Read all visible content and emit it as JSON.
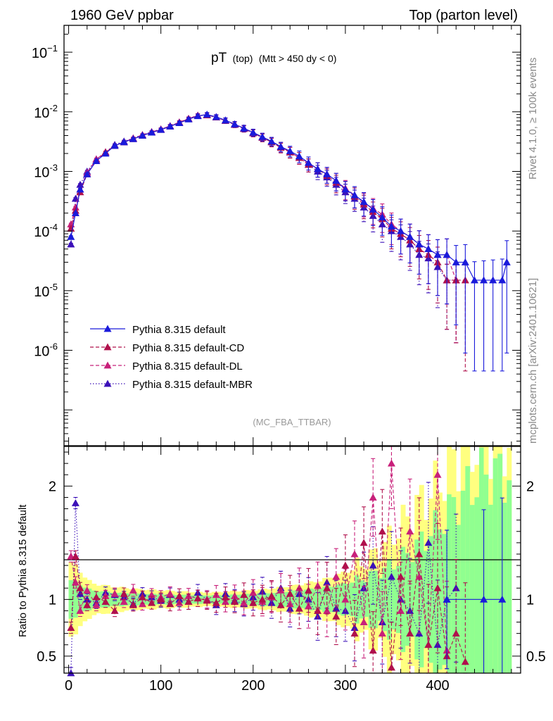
{
  "header": {
    "left": "1960 GeV ppbar",
    "right": "Top (parton level)"
  },
  "side_labels": {
    "rivet": "Rivet 4.1.0, ≥ 100k events",
    "mcplots": "mcplots.cern.ch [arXiv:2401.10621]"
  },
  "colors": {
    "default": "#1a1adb",
    "cd": "#b0104c",
    "dl": "#c8207a",
    "mbr": "#3b10b8",
    "band_yellow": "#ffff80",
    "band_green": "#90ff90"
  },
  "chart_data": [
    {
      "type": "line",
      "title": "pT (top) (Mtt > 450 dy < 0)",
      "title_parts": {
        "main": "pT",
        "sub1": "(top)",
        "sub2": "(Mtt > 450 dy < 0)"
      },
      "reference": "(MC_FBA_TTBAR)",
      "xlabel": "",
      "ylabel": "",
      "xlim": [
        -5,
        490
      ],
      "ylim_log10": [
        -7.6,
        -0.55
      ],
      "yscale": "log",
      "xticks": [
        0,
        100,
        200,
        300,
        400
      ],
      "ytick_labels": [
        {
          "exp": -1,
          "text": "10",
          "sup": "−1"
        },
        {
          "exp": -2,
          "text": "10",
          "sup": "-2"
        },
        {
          "exp": -3,
          "text": "10",
          "sup": "-3"
        },
        {
          "exp": -4,
          "text": "10",
          "sup": "-4"
        },
        {
          "exp": -5,
          "text": "10",
          "sup": "-5"
        },
        {
          "exp": -6,
          "text": "10",
          "sup": "-6"
        }
      ],
      "legend": [
        {
          "key": "default",
          "label": "Pythia 8.315 default",
          "style": "solid"
        },
        {
          "key": "cd",
          "label": "Pythia 8.315 default-CD",
          "style": "dashed"
        },
        {
          "key": "dl",
          "label": "Pythia 8.315 default-DL",
          "style": "dashed"
        },
        {
          "key": "mbr",
          "label": "Pythia 8.315 default-MBR",
          "style": "dotted"
        }
      ],
      "series": [
        {
          "key": "default",
          "name": "Pythia 8.315 default",
          "x": [
            2.5,
            7.5,
            12.5,
            20,
            30,
            40,
            50,
            60,
            70,
            80,
            90,
            100,
            110,
            120,
            130,
            140,
            150,
            160,
            170,
            180,
            190,
            200,
            210,
            220,
            230,
            240,
            250,
            260,
            270,
            280,
            290,
            300,
            310,
            320,
            330,
            340,
            350,
            360,
            370,
            380,
            390,
            400,
            410,
            420,
            430,
            440,
            450,
            460,
            470,
            475
          ],
          "values": [
            8e-05,
            0.0002,
            0.0005,
            0.0009,
            0.0015,
            0.002,
            0.0027,
            0.0031,
            0.0035,
            0.004,
            0.0045,
            0.005,
            0.0057,
            0.0065,
            0.0075,
            0.0085,
            0.009,
            0.0082,
            0.0072,
            0.0062,
            0.0053,
            0.0045,
            0.0038,
            0.0032,
            0.0026,
            0.0022,
            0.0018,
            0.0014,
            0.0011,
            0.0009,
            0.0007,
            0.0005,
            0.0004,
            0.00031,
            0.00023,
            0.00017,
            0.00012,
            0.0001,
            8e-05,
            6e-05,
            5e-05,
            4e-05,
            4e-05,
            3e-05,
            3e-05,
            1.5e-05,
            1.5e-05,
            1.5e-05,
            1.5e-05,
            3e-05
          ]
        },
        {
          "key": "cd",
          "name": "Pythia 8.315 default-CD",
          "x": [
            2.5,
            7.5,
            12.5,
            20,
            30,
            40,
            50,
            60,
            70,
            80,
            90,
            100,
            110,
            120,
            130,
            140,
            150,
            160,
            170,
            180,
            190,
            200,
            210,
            220,
            230,
            240,
            250,
            260,
            270,
            280,
            290,
            300,
            310,
            320,
            330,
            340,
            350,
            360,
            370,
            380,
            390,
            400,
            410,
            420,
            430
          ],
          "values": [
            0.00011,
            0.00022,
            0.00045,
            0.0009,
            0.0015,
            0.0021,
            0.0027,
            0.0031,
            0.0035,
            0.004,
            0.0045,
            0.005,
            0.0057,
            0.0066,
            0.0076,
            0.0086,
            0.0088,
            0.0081,
            0.0071,
            0.0061,
            0.0052,
            0.0044,
            0.0037,
            0.0031,
            0.0025,
            0.0021,
            0.0017,
            0.0013,
            0.0011,
            0.00085,
            0.00065,
            0.0005,
            0.00038,
            0.00028,
            0.00021,
            0.00016,
            0.00011,
            9e-05,
            7e-05,
            5e-05,
            4e-05,
            3e-05,
            1.5e-05,
            1.5e-05,
            1.5e-05
          ]
        },
        {
          "key": "dl",
          "name": "Pythia 8.315 default-DL",
          "x": [
            2.5,
            7.5,
            12.5,
            20,
            30,
            40,
            50,
            60,
            70,
            80,
            90,
            100,
            110,
            120,
            130,
            140,
            150,
            160,
            170,
            180,
            190,
            200,
            210,
            220,
            230,
            240,
            250,
            260,
            270,
            280,
            290,
            300,
            310,
            320,
            330,
            340,
            350,
            360,
            370,
            380,
            390,
            400,
            410,
            420
          ],
          "values": [
            0.00013,
            0.00025,
            0.0005,
            0.00095,
            0.0016,
            0.0021,
            0.0027,
            0.0031,
            0.0036,
            0.0041,
            0.0046,
            0.0051,
            0.0058,
            0.0067,
            0.0077,
            0.0087,
            0.0089,
            0.0082,
            0.0072,
            0.0062,
            0.0053,
            0.0045,
            0.0038,
            0.0032,
            0.0026,
            0.0021,
            0.0017,
            0.0014,
            0.0011,
            0.0009,
            0.0007,
            0.00052,
            0.0004,
            0.0003,
            0.00024,
            0.00019,
            0.00013,
            0.0001,
            8e-05,
            6e-05,
            5e-05,
            4e-05,
            4e-05,
            1.5e-05
          ]
        },
        {
          "key": "mbr",
          "name": "Pythia 8.315 default-MBR",
          "x": [
            2.5,
            7.5,
            12.5,
            20,
            30,
            40,
            50,
            60,
            70,
            80,
            90,
            100,
            110,
            120,
            130,
            140,
            150,
            160,
            170,
            180,
            190,
            200,
            210,
            220,
            230,
            240,
            250,
            260,
            270,
            280,
            290,
            300,
            310,
            320,
            330,
            340,
            350,
            360,
            370,
            380,
            390,
            400,
            410,
            420
          ],
          "values": [
            6e-05,
            0.00035,
            0.0006,
            0.001,
            0.0016,
            0.0021,
            0.0028,
            0.0032,
            0.0036,
            0.0041,
            0.0046,
            0.0051,
            0.0058,
            0.0066,
            0.0076,
            0.0086,
            0.0088,
            0.0081,
            0.0071,
            0.0061,
            0.0052,
            0.0044,
            0.0037,
            0.0031,
            0.0026,
            0.0021,
            0.0017,
            0.0013,
            0.001,
            0.0008,
            0.0006,
            0.00045,
            0.00035,
            0.00025,
            0.00018,
            0.00013,
            0.0001,
            8e-05,
            6e-05,
            4e-05,
            3.5e-05,
            2.5e-05,
            1.5e-05,
            1.5e-05
          ]
        }
      ]
    },
    {
      "type": "line",
      "title": "",
      "ylabel": "Ratio to Pythia 8.315 default",
      "xlim": [
        -5,
        490
      ],
      "ylim": [
        0.35,
        2.35
      ],
      "xticks": [
        0,
        100,
        200,
        300,
        400
      ],
      "yticks": [
        0.5,
        1,
        2
      ],
      "ytick_labels": [
        "0.5",
        "1",
        "2"
      ],
      "bands": {
        "x": [
          0,
          25,
          50,
          75,
          100,
          125,
          150,
          175,
          200,
          225,
          250,
          275,
          300,
          325,
          350,
          375,
          400,
          425,
          450,
          475
        ],
        "yellow_halfwidth": [
          0.35,
          0.14,
          0.11,
          0.09,
          0.08,
          0.07,
          0.06,
          0.07,
          0.08,
          0.1,
          0.13,
          0.17,
          0.24,
          0.35,
          0.55,
          0.8,
          1.0,
          1.3,
          1.4,
          1.4
        ],
        "green_halfwidth": [
          0.18,
          0.08,
          0.06,
          0.05,
          0.045,
          0.04,
          0.035,
          0.04,
          0.05,
          0.06,
          0.08,
          0.1,
          0.14,
          0.2,
          0.3,
          0.45,
          0.65,
          0.9,
          1.1,
          1.1
        ]
      },
      "series": [
        {
          "key": "cd",
          "name": "default-CD",
          "x": [
            2.5,
            7.5,
            12.5,
            20,
            30,
            40,
            50,
            60,
            70,
            80,
            90,
            100,
            110,
            120,
            130,
            140,
            150,
            160,
            170,
            180,
            190,
            200,
            210,
            220,
            230,
            240,
            250,
            260,
            270,
            280,
            290,
            300,
            310,
            320,
            330,
            340,
            350,
            360,
            370,
            380,
            390,
            400,
            410,
            420,
            430
          ],
          "values": [
            0.75,
            1.38,
            1.1,
            0.95,
            1.02,
            0.98,
            0.9,
            1.05,
            0.95,
            1.02,
            0.97,
            1.0,
            0.96,
            1.03,
            0.98,
            1.01,
            0.99,
            0.97,
            1.02,
            0.98,
            1.04,
            0.97,
            1.0,
            1.03,
            0.95,
            1.05,
            0.92,
            1.08,
            0.9,
            1.1,
            0.85,
            1.3,
            0.7,
            1.5,
            0.55,
            1.6,
            0.4,
            1.2,
            0.7,
            1.4,
            0.6,
            1.1,
            0.5,
            0.7,
            0.45
          ]
        },
        {
          "key": "dl",
          "name": "default-DL",
          "x": [
            2.5,
            7.5,
            12.5,
            20,
            30,
            40,
            50,
            60,
            70,
            80,
            90,
            100,
            110,
            120,
            130,
            140,
            150,
            160,
            170,
            180,
            190,
            200,
            210,
            220,
            230,
            240,
            250,
            260,
            270,
            280,
            290,
            300,
            310,
            320,
            330,
            340,
            350,
            360,
            370,
            380,
            390,
            400,
            410
          ],
          "values": [
            1.38,
            1.15,
            0.9,
            1.08,
            0.95,
            1.03,
            1.05,
            0.98,
            1.08,
            0.96,
            1.04,
            1.02,
            1.05,
            0.97,
            1.03,
            1.01,
            1.0,
            1.04,
            0.98,
            1.03,
            0.97,
            1.06,
            0.98,
            1.02,
            1.08,
            0.96,
            1.1,
            0.94,
            1.12,
            0.9,
            1.2,
            1.0,
            1.4,
            0.8,
            1.9,
            0.7,
            2.2,
            0.9,
            1.6,
            1.2,
            0.6,
            2.1,
            0.55
          ]
        },
        {
          "key": "mbr",
          "name": "default-MBR",
          "x": [
            2.5,
            7.5,
            12.5,
            20,
            30,
            40,
            50,
            60,
            70,
            80,
            90,
            100,
            110,
            120,
            130,
            140,
            150,
            160,
            170,
            180,
            190,
            200,
            210,
            220,
            230,
            240,
            250,
            260,
            270,
            280,
            290,
            300,
            310,
            320,
            330,
            340,
            350,
            360,
            370,
            380,
            390,
            400,
            410,
            420
          ],
          "values": [
            0.35,
            1.85,
            1.05,
            1.0,
            0.97,
            1.06,
            1.04,
            1.02,
            0.96,
            1.05,
            1.02,
            0.99,
            1.04,
            1.0,
            0.98,
            1.06,
            1.0,
            0.95,
            1.05,
            0.99,
            0.96,
            1.02,
            1.07,
            0.97,
            1.1,
            0.92,
            1.05,
            1.0,
            0.85,
            1.15,
            0.92,
            0.9,
            0.75,
            1.1,
            1.3,
            0.8,
            1.2,
            1.0,
            0.9,
            0.7,
            1.5,
            0.6,
            1.0,
            1.1
          ]
        },
        {
          "key": "default",
          "name": "default",
          "x": [
            410,
            450,
            470
          ],
          "values": [
            1.0,
            1.0,
            1.0
          ]
        }
      ]
    }
  ]
}
